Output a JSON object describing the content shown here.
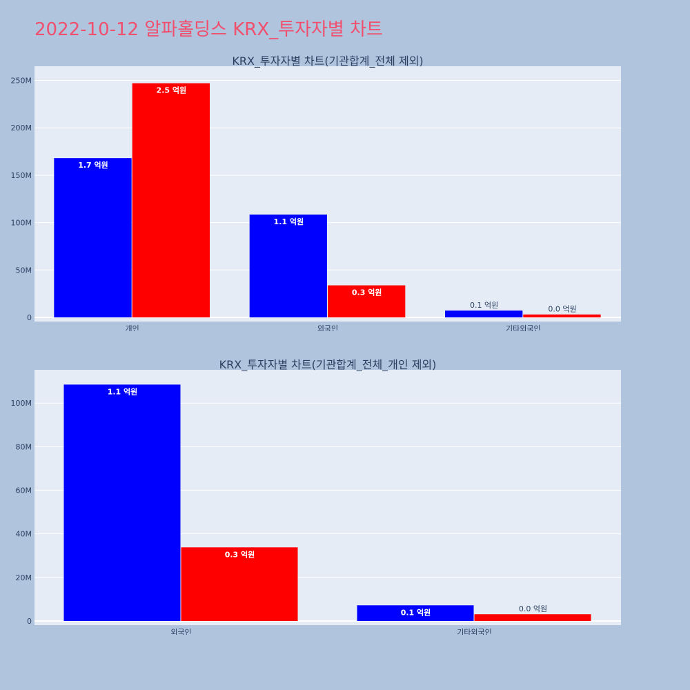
{
  "page": {
    "title": "2022-10-12 알파홀딩스 KRX_투자자별 차트"
  },
  "colors": {
    "background": "#b0c4de",
    "plot_bg": "#e5ecf6",
    "grid": "#ffffff",
    "title": "#f0506e",
    "text": "#2a3f5f",
    "series_a": "#0000ff",
    "series_b": "#ff0000"
  },
  "chart_data": [
    {
      "type": "bar",
      "title": "KRX_투자자별 차트(기관합계_전체 제외)",
      "categories": [
        "개인",
        "외국인",
        "기타외국인"
      ],
      "series": [
        {
          "color": "#0000ff",
          "values": [
            168000000,
            108500000,
            7200000
          ],
          "labels": [
            "1.7 억원",
            "1.1 억원",
            "0.1 억원"
          ]
        },
        {
          "color": "#ff0000",
          "values": [
            247000000,
            33800000,
            3100000
          ],
          "labels": [
            "2.5 억원",
            "0.3 억원",
            "0.0 억원"
          ]
        }
      ],
      "ylim": [
        0,
        262000000
      ],
      "yticks": [
        0,
        50000000,
        100000000,
        150000000,
        200000000,
        250000000
      ],
      "ytick_labels": [
        "0",
        "50M",
        "100M",
        "150M",
        "200M",
        "250M"
      ],
      "grid": true
    },
    {
      "type": "bar",
      "title": "KRX_투자자별 차트(기관합계_전체_개인 제외)",
      "categories": [
        "외국인",
        "기타외국인"
      ],
      "series": [
        {
          "color": "#0000ff",
          "values": [
            108500000,
            7200000
          ],
          "labels": [
            "1.1 억원",
            "0.1 억원"
          ]
        },
        {
          "color": "#ff0000",
          "values": [
            33800000,
            3100000
          ],
          "labels": [
            "0.3 억원",
            "0.0 억원"
          ]
        }
      ],
      "ylim": [
        0,
        114000000
      ],
      "yticks": [
        0,
        20000000,
        40000000,
        60000000,
        80000000,
        100000000
      ],
      "ytick_labels": [
        "0",
        "20M",
        "40M",
        "60M",
        "80M",
        "100M"
      ],
      "grid": true
    }
  ]
}
